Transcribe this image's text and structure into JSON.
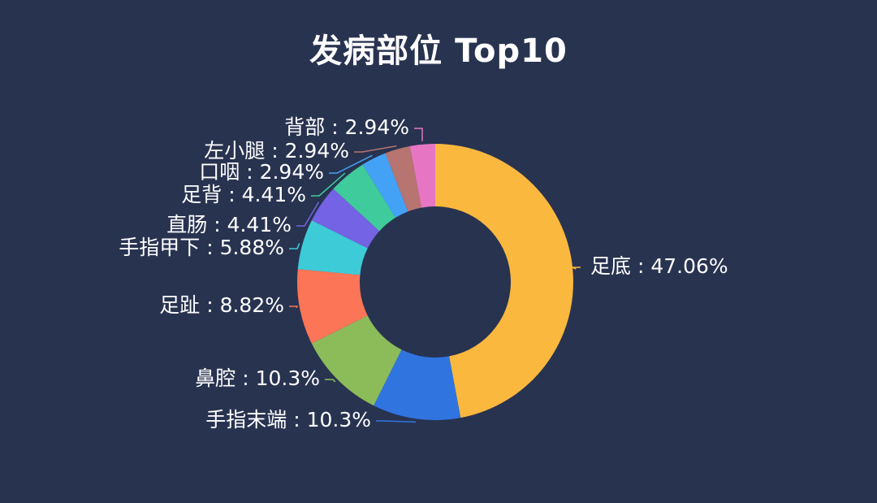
{
  "chart_data": {
    "type": "pie",
    "title": "发病部位 Top10",
    "legend": "none",
    "slices": [
      {
        "label": "足底",
        "value": 47.06,
        "display": "47.06%",
        "color": "#FBB83E"
      },
      {
        "label": "手指末端",
        "value": 10.3,
        "display": "10.3%",
        "color": "#3074E0"
      },
      {
        "label": "鼻腔",
        "value": 10.3,
        "display": "10.3%",
        "color": "#8CBB5A"
      },
      {
        "label": "足趾",
        "value": 8.82,
        "display": "8.82%",
        "color": "#FB7556"
      },
      {
        "label": "手指甲下",
        "value": 5.88,
        "display": "5.88%",
        "color": "#3ECBD8"
      },
      {
        "label": "直肠",
        "value": 4.41,
        "display": "4.41%",
        "color": "#7463E4"
      },
      {
        "label": "足背",
        "value": 4.41,
        "display": "4.41%",
        "color": "#3FCB9B"
      },
      {
        "label": "口咽",
        "value": 2.94,
        "display": "2.94%",
        "color": "#43A2F6"
      },
      {
        "label": "左小腿",
        "value": 2.94,
        "display": "2.94%",
        "color": "#B77470"
      },
      {
        "label": "背部",
        "value": 2.94,
        "display": "2.94%",
        "color": "#E676C3"
      }
    ]
  }
}
